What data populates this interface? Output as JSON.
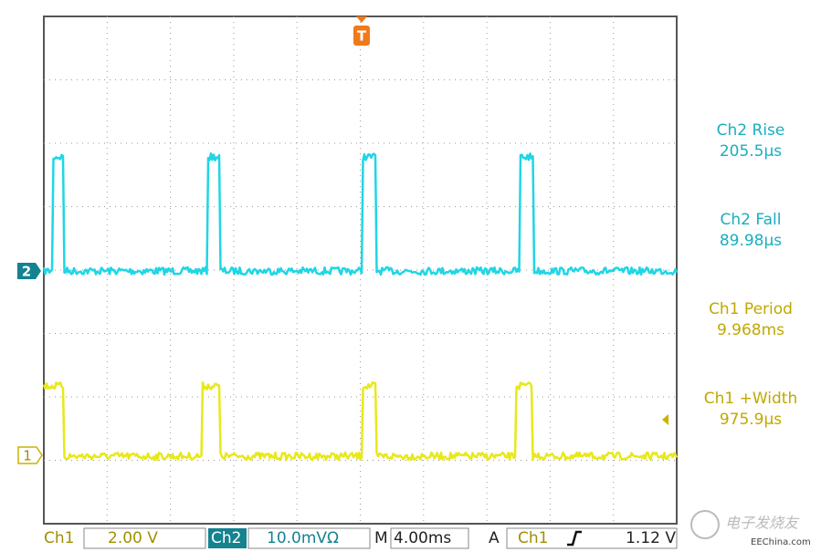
{
  "trigger_marker": "T",
  "channel_markers": {
    "ch2": "2",
    "ch1": "1"
  },
  "measurements": [
    {
      "label": "Ch2 Rise",
      "value": "205.5µs"
    },
    {
      "label": "Ch2 Fall",
      "value": "89.98µs"
    },
    {
      "label": "Ch1 Period",
      "value": "9.968ms"
    },
    {
      "label": "Ch1 +Width",
      "value": "975.9µs"
    }
  ],
  "status_bar": {
    "ch1_label": "Ch1",
    "ch1_scale": "2.00 V",
    "ch2_label": "Ch2",
    "ch2_scale": "10.0mVΩ",
    "timebase_label": "M",
    "timebase": "4.00ms",
    "trigger_mode": "A",
    "trigger_source": "Ch1",
    "trigger_level": "1.12 V"
  },
  "logo_text": "电子发烧友",
  "watermark": "EEChina.com"
}
